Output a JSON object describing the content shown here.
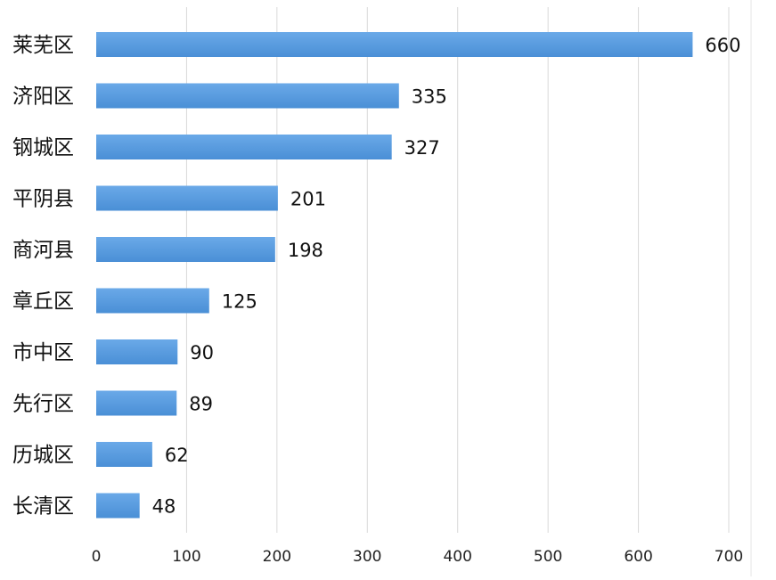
{
  "chart_data": {
    "type": "bar",
    "orientation": "horizontal",
    "categories": [
      "莱芜区",
      "济阳区",
      "钢城区",
      "平阴县",
      "商河县",
      "章丘区",
      "市中区",
      "先行区",
      "历城区",
      "长清区"
    ],
    "values": [
      660,
      335,
      327,
      201,
      198,
      125,
      90,
      89,
      62,
      48
    ],
    "x_ticks": [
      0,
      100,
      200,
      300,
      400,
      500,
      600,
      700
    ],
    "xlim": [
      0,
      700
    ],
    "grid": "vertical",
    "legend": "none",
    "data_labels": true,
    "bar_color": "#4a8fd6",
    "bar_color_light": "#6aa9e8",
    "grid_color": "#d9d9d9"
  }
}
